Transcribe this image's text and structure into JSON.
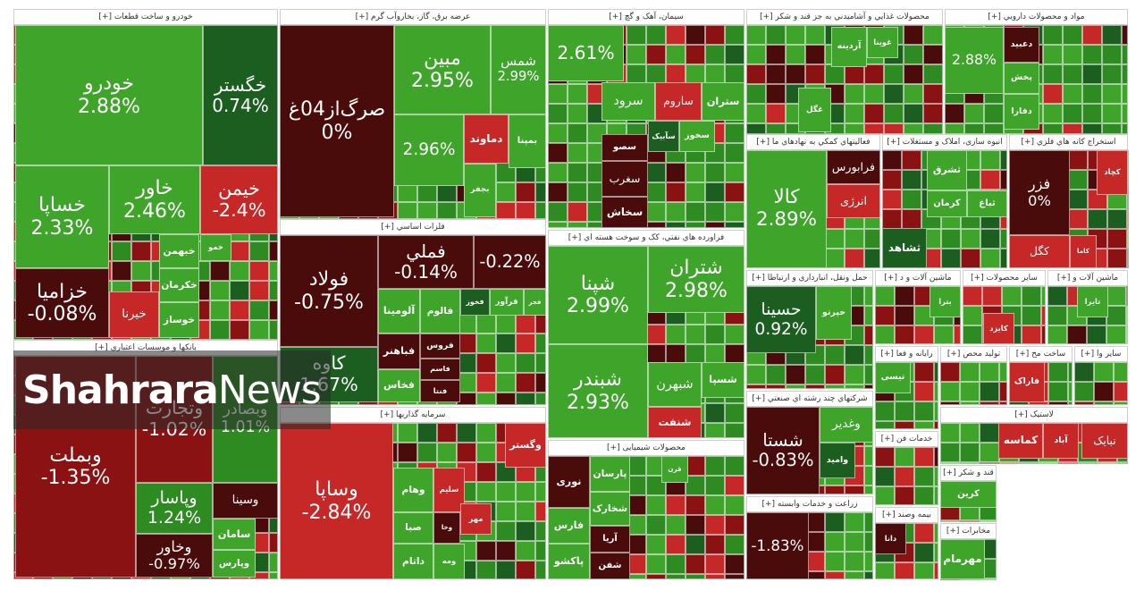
{
  "watermark": {
    "brand": "Shahrara",
    "suffix": "News"
  },
  "sectors": [
    {
      "title": "خودرو و ساخت قطعات [+]",
      "cells": [
        {
          "name": "خودرو",
          "change": "2.88%"
        },
        {
          "name": "خگستر",
          "change": "0.74%"
        },
        {
          "name": "خساپا",
          "change": "2.33%"
        },
        {
          "name": "خاور",
          "change": "2.46%"
        },
        {
          "name": "خیمن",
          "change": "-2.4%"
        },
        {
          "name": "خزامیا",
          "change": "-0.08%"
        },
        {
          "name": "خبهمن"
        },
        {
          "name": "خکرمان"
        },
        {
          "name": "خوساز"
        },
        {
          "name": "خیرنا"
        },
        {
          "name": "خمو"
        }
      ]
    },
    {
      "title": "بانکها و موسسات اعتباري [+]",
      "cells": [
        {
          "name": "وبملت",
          "change": "-1.35%"
        },
        {
          "name": "وتجارت",
          "change": "-1.02%"
        },
        {
          "name": "وبصادر",
          "change": "1.01%"
        },
        {
          "name": "وپاسار",
          "change": "1.24%"
        },
        {
          "name": "وخاور",
          "change": "-0.97%"
        },
        {
          "name": "وسینا"
        },
        {
          "name": "سامان"
        },
        {
          "name": "وپارس"
        }
      ]
    },
    {
      "title": "عرضه برق، گاز، بخاروآب گرم [+]",
      "cells": [
        {
          "name": "صرگ‌از04غ",
          "change": "0%"
        },
        {
          "name": "مبین",
          "change": "2.95%"
        },
        {
          "name": "شمس",
          "change": "2.99%"
        },
        {
          "name": "دماوند"
        },
        {
          "name": "بمپنا"
        },
        {
          "name": "بجفر"
        },
        {
          "change": "2.96%"
        }
      ]
    },
    {
      "title": "فلزات اساسي [+]",
      "cells": [
        {
          "name": "فولاد",
          "change": "-0.75%"
        },
        {
          "name": "فملي",
          "change": "-0.14%"
        },
        {
          "change": "-0.22%"
        },
        {
          "name": "کاوه",
          "change": "1.67%"
        },
        {
          "name": "آلومینا"
        },
        {
          "name": "فالوم"
        },
        {
          "name": "فخوز"
        },
        {
          "name": "فرآور"
        },
        {
          "name": "فجر"
        },
        {
          "name": "فروس"
        },
        {
          "name": "فباهنر"
        },
        {
          "name": "فخاس"
        },
        {
          "name": "فاسم"
        },
        {
          "name": "فنتا"
        }
      ]
    },
    {
      "title": "سرمایه گذاریها [+]",
      "cells": [
        {
          "name": "وساپا",
          "change": "-2.84%"
        },
        {
          "name": "وگستر"
        },
        {
          "name": "وهام"
        },
        {
          "name": "سلیم"
        },
        {
          "name": "وخا"
        },
        {
          "name": "مهر"
        },
        {
          "name": "صبا"
        },
        {
          "name": "داتام"
        },
        {
          "name": "ومه"
        }
      ]
    },
    {
      "title": "سیمان، آهک و گچ [+]",
      "cells": [
        {
          "change": "2.61%"
        },
        {
          "name": "ستران"
        },
        {
          "name": "ساروم"
        },
        {
          "name": "سرود"
        },
        {
          "name": "سخوز"
        },
        {
          "name": "سآبیک"
        },
        {
          "name": "سصو"
        },
        {
          "name": "سغرب"
        },
        {
          "name": "سخاش"
        }
      ]
    },
    {
      "title": "فراورده هاي نفتي، کک و سوخت هسته اي [+]",
      "cells": [
        {
          "name": "شپنا",
          "change": "2.99%"
        },
        {
          "name": "شتران",
          "change": "2.98%"
        },
        {
          "name": "شبندر",
          "change": "2.93%"
        },
        {
          "name": "شبهرن"
        },
        {
          "name": "شسپا"
        },
        {
          "name": "شنفت"
        }
      ]
    },
    {
      "title": "محصولات شیمیایی [+]",
      "cells": [
        {
          "name": "نوری"
        },
        {
          "name": "پارسان"
        },
        {
          "name": "شخارک"
        },
        {
          "name": "فارس"
        },
        {
          "name": "آریا"
        },
        {
          "name": "پاکشو"
        },
        {
          "name": "شفن"
        },
        {
          "name": "قرن"
        }
      ]
    },
    {
      "title": "محصولات غذايي و آشاميدني به جز قند و شکر [+]",
      "cells": [
        {
          "name": "آردینه"
        },
        {
          "name": "غگل"
        },
        {
          "name": "غوینا"
        }
      ]
    },
    {
      "title": "مواد و محصولات دارويي [+]",
      "cells": [
        {
          "name": "دعبید"
        },
        {
          "name": "پخش"
        },
        {
          "name": "دفارا"
        },
        {
          "change": "2.88%"
        }
      ]
    },
    {
      "title": "فعاليتهاي کمکي به نهادهاي ما [+]",
      "cells": [
        {
          "name": "کالا",
          "change": "2.89%"
        },
        {
          "name": "فرابورس"
        },
        {
          "name": "انرژی"
        }
      ]
    },
    {
      "title": "انبوه سازي، املاک و مستغلات [+]",
      "cells": [
        {
          "name": "ثشرق"
        },
        {
          "name": "کرمان"
        },
        {
          "name": "ثباغ"
        },
        {
          "name": "ثشاهد"
        }
      ]
    },
    {
      "title": "استخراج کانه هاي فلزي [+]",
      "cells": [
        {
          "name": "فزر",
          "change": "0%"
        },
        {
          "name": "کچاد"
        },
        {
          "name": "کگل"
        },
        {
          "name": "کاما"
        }
      ]
    },
    {
      "title": "حمل ونقل، انبارداري و ارتباطا [+]",
      "cells": [
        {
          "name": "حسینا",
          "change": "0.92%"
        },
        {
          "name": "حپرتو"
        }
      ]
    },
    {
      "title": "ماشین آلات و د [+]",
      "cells": [
        {
          "name": "بترا"
        }
      ]
    },
    {
      "title": "سایر محصولات [+]",
      "cells": [
        {
          "name": "کایزد"
        }
      ]
    },
    {
      "title": "ماشین آلات و [+]",
      "cells": [
        {
          "name": "تایرا"
        }
      ]
    },
    {
      "title": "شرکتهاي چند رشته اي صنعتي [+]",
      "cells": [
        {
          "name": "شستا",
          "change": "-0.83%"
        },
        {
          "name": "وغدیر"
        },
        {
          "name": "وامید"
        }
      ]
    },
    {
      "title": "زراعت و خدمات وابسته [+]",
      "cells": [
        {
          "change": "-1.83%"
        }
      ]
    },
    {
      "title": "رایانه و فعا [+]",
      "cells": [
        {
          "name": "تیسی"
        }
      ]
    },
    {
      "title": "خدمات فن [+]",
      "cells": []
    },
    {
      "title": "بیمه وصند [+]",
      "cells": [
        {
          "name": "دانا"
        }
      ]
    },
    {
      "title": "تولید محص [+]",
      "cells": []
    },
    {
      "title": "ساخت مح [+]",
      "cells": [
        {
          "name": "فاراک"
        }
      ]
    },
    {
      "title": "سایر وا [+]",
      "cells": []
    },
    {
      "title": "لاستیک [+]",
      "cells": [
        {
          "name": "کماسه"
        },
        {
          "name": "آباد"
        },
        {
          "name": "نبایک"
        }
      ]
    },
    {
      "title": "قند و شکر [+]",
      "cells": [
        {
          "name": "کرین"
        }
      ]
    },
    {
      "title": "مخابرات [+]",
      "cells": [
        {
          "name": "مهرمام"
        }
      ]
    }
  ]
}
